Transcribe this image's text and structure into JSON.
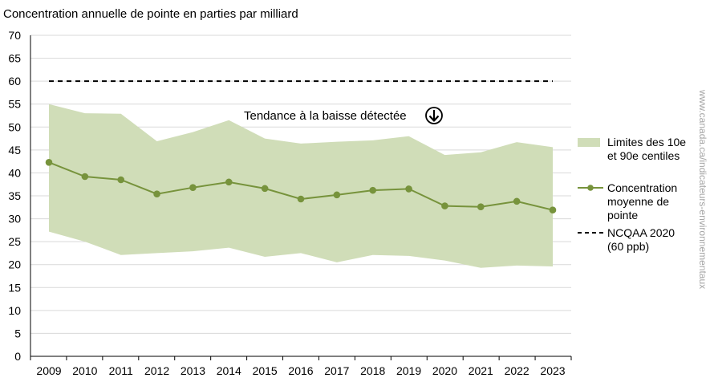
{
  "chart_data": {
    "type": "line",
    "title": "Concentration annuelle de pointe en parties par milliard",
    "xlabel": "",
    "ylabel": "",
    "x": [
      "2009",
      "2010",
      "2011",
      "2012",
      "2013",
      "2014",
      "2015",
      "2016",
      "2017",
      "2018",
      "2019",
      "2020",
      "2021",
      "2022",
      "2023"
    ],
    "ylim": [
      0,
      70
    ],
    "yticks": [
      "0",
      "5",
      "10",
      "15",
      "20",
      "25",
      "30",
      "35",
      "40",
      "45",
      "50",
      "55",
      "60",
      "65",
      "70"
    ],
    "grid": true,
    "legend_position": "right",
    "series": [
      {
        "name": "Concentration moyenne de pointe",
        "kind": "line-marker",
        "color": "#77933c",
        "values": [
          42.3,
          39.2,
          38.5,
          35.4,
          36.8,
          38.0,
          36.6,
          34.3,
          35.2,
          36.2,
          36.5,
          32.8,
          32.6,
          33.8,
          31.9
        ]
      },
      {
        "name": "Limites des 10e et 90e centiles",
        "kind": "band",
        "color": "#d0ddb8",
        "upper": [
          55.0,
          53.0,
          52.9,
          46.9,
          48.9,
          51.5,
          47.5,
          46.4,
          46.8,
          47.1,
          48.0,
          43.9,
          44.5,
          46.7,
          45.6
        ],
        "lower": [
          27.2,
          25.0,
          22.1,
          22.5,
          22.9,
          23.7,
          21.7,
          22.5,
          20.5,
          22.1,
          21.9,
          20.9,
          19.3,
          19.8,
          19.6
        ]
      },
      {
        "name": "NCQAA 2020 (60 ppb)",
        "kind": "dashed-reference",
        "color": "#000000",
        "value": 60
      }
    ],
    "legend": [
      {
        "key": "band",
        "lines": [
          "Limites des 10e",
          "et 90e centiles"
        ]
      },
      {
        "key": "line",
        "lines": [
          "Concentration",
          "moyenne de",
          "pointe"
        ]
      },
      {
        "key": "dashed",
        "lines": [
          "NCQAA 2020",
          "(60 ppb)"
        ]
      }
    ],
    "annotation": "Tendance à la baisse détectée",
    "side_note": "www.canada.ca/indicateurs-environnementaux"
  }
}
